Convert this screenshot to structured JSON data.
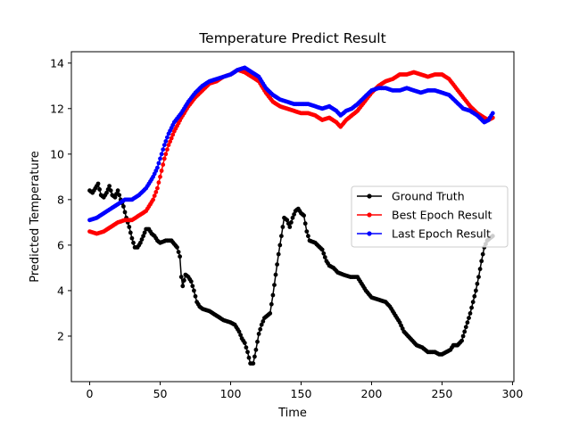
{
  "chart_data": {
    "type": "line",
    "title": "Temperature Predict Result",
    "xlabel": "Time",
    "ylabel": "Predicted Temperature",
    "xlim": [
      -13,
      301
    ],
    "ylim": [
      0,
      14.5
    ],
    "xticks": [
      0,
      50,
      100,
      150,
      200,
      250,
      300
    ],
    "yticks": [
      2,
      4,
      6,
      8,
      10,
      12,
      14
    ],
    "grid": false,
    "legend_position": "center-right",
    "marker": "dot",
    "series": [
      {
        "name": "Ground Truth",
        "color": "#000000",
        "points": [
          [
            0,
            8.4
          ],
          [
            2,
            8.3
          ],
          [
            4,
            8.5
          ],
          [
            6,
            8.7
          ],
          [
            8,
            8.2
          ],
          [
            10,
            8.1
          ],
          [
            12,
            8.3
          ],
          [
            14,
            8.6
          ],
          [
            16,
            8.2
          ],
          [
            18,
            8.1
          ],
          [
            20,
            8.4
          ],
          [
            22,
            8.0
          ],
          [
            24,
            7.7
          ],
          [
            26,
            7.2
          ],
          [
            28,
            6.8
          ],
          [
            30,
            6.3
          ],
          [
            32,
            5.9
          ],
          [
            34,
            5.9
          ],
          [
            36,
            6.1
          ],
          [
            38,
            6.4
          ],
          [
            40,
            6.7
          ],
          [
            42,
            6.7
          ],
          [
            44,
            6.5
          ],
          [
            46,
            6.4
          ],
          [
            48,
            6.2
          ],
          [
            50,
            6.1
          ],
          [
            54,
            6.2
          ],
          [
            58,
            6.2
          ],
          [
            62,
            5.9
          ],
          [
            64,
            5.5
          ],
          [
            65,
            4.6
          ],
          [
            66,
            4.2
          ],
          [
            68,
            4.7
          ],
          [
            70,
            4.6
          ],
          [
            72,
            4.4
          ],
          [
            74,
            4.0
          ],
          [
            76,
            3.5
          ],
          [
            78,
            3.3
          ],
          [
            80,
            3.2
          ],
          [
            85,
            3.1
          ],
          [
            90,
            2.9
          ],
          [
            95,
            2.7
          ],
          [
            100,
            2.6
          ],
          [
            103,
            2.5
          ],
          [
            106,
            2.2
          ],
          [
            108,
            1.9
          ],
          [
            110,
            1.7
          ],
          [
            112,
            1.3
          ],
          [
            114,
            0.8
          ],
          [
            116,
            0.8
          ],
          [
            118,
            1.4
          ],
          [
            120,
            2.1
          ],
          [
            122,
            2.5
          ],
          [
            124,
            2.8
          ],
          [
            126,
            2.9
          ],
          [
            128,
            3.0
          ],
          [
            130,
            3.8
          ],
          [
            132,
            4.7
          ],
          [
            134,
            5.6
          ],
          [
            136,
            6.4
          ],
          [
            138,
            7.2
          ],
          [
            140,
            7.1
          ],
          [
            142,
            6.8
          ],
          [
            144,
            7.2
          ],
          [
            146,
            7.5
          ],
          [
            148,
            7.6
          ],
          [
            150,
            7.4
          ],
          [
            152,
            7.3
          ],
          [
            154,
            6.6
          ],
          [
            156,
            6.2
          ],
          [
            160,
            6.1
          ],
          [
            165,
            5.8
          ],
          [
            168,
            5.3
          ],
          [
            170,
            5.1
          ],
          [
            173,
            5.0
          ],
          [
            176,
            4.8
          ],
          [
            180,
            4.7
          ],
          [
            185,
            4.6
          ],
          [
            190,
            4.6
          ],
          [
            193,
            4.3
          ],
          [
            196,
            4.0
          ],
          [
            200,
            3.7
          ],
          [
            205,
            3.6
          ],
          [
            210,
            3.5
          ],
          [
            213,
            3.3
          ],
          [
            216,
            3.0
          ],
          [
            220,
            2.6
          ],
          [
            223,
            2.2
          ],
          [
            226,
            2.0
          ],
          [
            229,
            1.8
          ],
          [
            232,
            1.6
          ],
          [
            236,
            1.5
          ],
          [
            240,
            1.3
          ],
          [
            245,
            1.3
          ],
          [
            248,
            1.2
          ],
          [
            250,
            1.2
          ],
          [
            253,
            1.3
          ],
          [
            256,
            1.4
          ],
          [
            258,
            1.6
          ],
          [
            261,
            1.6
          ],
          [
            264,
            1.8
          ],
          [
            266,
            2.2
          ],
          [
            268,
            2.6
          ],
          [
            270,
            3.0
          ],
          [
            272,
            3.5
          ],
          [
            274,
            4.0
          ],
          [
            276,
            4.6
          ],
          [
            278,
            5.3
          ],
          [
            280,
            5.9
          ],
          [
            282,
            6.2
          ],
          [
            284,
            6.3
          ],
          [
            286,
            6.4
          ]
        ]
      },
      {
        "name": "Best Epoch Result",
        "color": "#ff0000",
        "points": [
          [
            0,
            6.6
          ],
          [
            5,
            6.5
          ],
          [
            10,
            6.6
          ],
          [
            15,
            6.8
          ],
          [
            20,
            7.0
          ],
          [
            25,
            7.1
          ],
          [
            30,
            7.1
          ],
          [
            35,
            7.3
          ],
          [
            40,
            7.5
          ],
          [
            45,
            8.0
          ],
          [
            48,
            8.5
          ],
          [
            50,
            9.0
          ],
          [
            53,
            9.8
          ],
          [
            56,
            10.4
          ],
          [
            60,
            11.0
          ],
          [
            65,
            11.6
          ],
          [
            70,
            12.1
          ],
          [
            75,
            12.5
          ],
          [
            80,
            12.8
          ],
          [
            85,
            13.1
          ],
          [
            90,
            13.2
          ],
          [
            95,
            13.4
          ],
          [
            100,
            13.5
          ],
          [
            105,
            13.7
          ],
          [
            110,
            13.6
          ],
          [
            115,
            13.4
          ],
          [
            120,
            13.2
          ],
          [
            125,
            12.7
          ],
          [
            130,
            12.3
          ],
          [
            135,
            12.1
          ],
          [
            140,
            12.0
          ],
          [
            145,
            11.9
          ],
          [
            150,
            11.8
          ],
          [
            155,
            11.8
          ],
          [
            160,
            11.7
          ],
          [
            165,
            11.5
          ],
          [
            170,
            11.6
          ],
          [
            175,
            11.4
          ],
          [
            178,
            11.2
          ],
          [
            182,
            11.5
          ],
          [
            186,
            11.7
          ],
          [
            190,
            11.9
          ],
          [
            195,
            12.3
          ],
          [
            200,
            12.7
          ],
          [
            205,
            13.0
          ],
          [
            210,
            13.2
          ],
          [
            215,
            13.3
          ],
          [
            220,
            13.5
          ],
          [
            225,
            13.5
          ],
          [
            230,
            13.6
          ],
          [
            235,
            13.5
          ],
          [
            240,
            13.4
          ],
          [
            245,
            13.5
          ],
          [
            250,
            13.5
          ],
          [
            255,
            13.3
          ],
          [
            260,
            12.9
          ],
          [
            265,
            12.5
          ],
          [
            270,
            12.1
          ],
          [
            275,
            11.8
          ],
          [
            280,
            11.6
          ],
          [
            283,
            11.5
          ],
          [
            286,
            11.6
          ]
        ]
      },
      {
        "name": "Last Epoch Result",
        "color": "#0000ff",
        "points": [
          [
            0,
            7.1
          ],
          [
            5,
            7.2
          ],
          [
            10,
            7.4
          ],
          [
            15,
            7.6
          ],
          [
            20,
            7.8
          ],
          [
            25,
            8.0
          ],
          [
            30,
            8.0
          ],
          [
            35,
            8.2
          ],
          [
            40,
            8.5
          ],
          [
            45,
            9.0
          ],
          [
            48,
            9.4
          ],
          [
            50,
            9.8
          ],
          [
            53,
            10.4
          ],
          [
            56,
            10.9
          ],
          [
            60,
            11.4
          ],
          [
            65,
            11.8
          ],
          [
            70,
            12.3
          ],
          [
            75,
            12.7
          ],
          [
            80,
            13.0
          ],
          [
            85,
            13.2
          ],
          [
            90,
            13.3
          ],
          [
            95,
            13.4
          ],
          [
            100,
            13.5
          ],
          [
            105,
            13.7
          ],
          [
            110,
            13.8
          ],
          [
            115,
            13.6
          ],
          [
            120,
            13.4
          ],
          [
            125,
            12.9
          ],
          [
            130,
            12.6
          ],
          [
            135,
            12.4
          ],
          [
            140,
            12.3
          ],
          [
            145,
            12.2
          ],
          [
            150,
            12.2
          ],
          [
            155,
            12.2
          ],
          [
            160,
            12.1
          ],
          [
            165,
            12.0
          ],
          [
            170,
            12.1
          ],
          [
            175,
            11.9
          ],
          [
            178,
            11.7
          ],
          [
            182,
            11.9
          ],
          [
            186,
            12.0
          ],
          [
            190,
            12.2
          ],
          [
            195,
            12.5
          ],
          [
            200,
            12.8
          ],
          [
            205,
            12.9
          ],
          [
            210,
            12.9
          ],
          [
            215,
            12.8
          ],
          [
            220,
            12.8
          ],
          [
            225,
            12.9
          ],
          [
            230,
            12.8
          ],
          [
            235,
            12.7
          ],
          [
            240,
            12.8
          ],
          [
            245,
            12.8
          ],
          [
            250,
            12.7
          ],
          [
            255,
            12.6
          ],
          [
            260,
            12.3
          ],
          [
            265,
            12.0
          ],
          [
            270,
            11.9
          ],
          [
            275,
            11.7
          ],
          [
            280,
            11.4
          ],
          [
            283,
            11.5
          ],
          [
            286,
            11.8
          ]
        ]
      }
    ]
  }
}
